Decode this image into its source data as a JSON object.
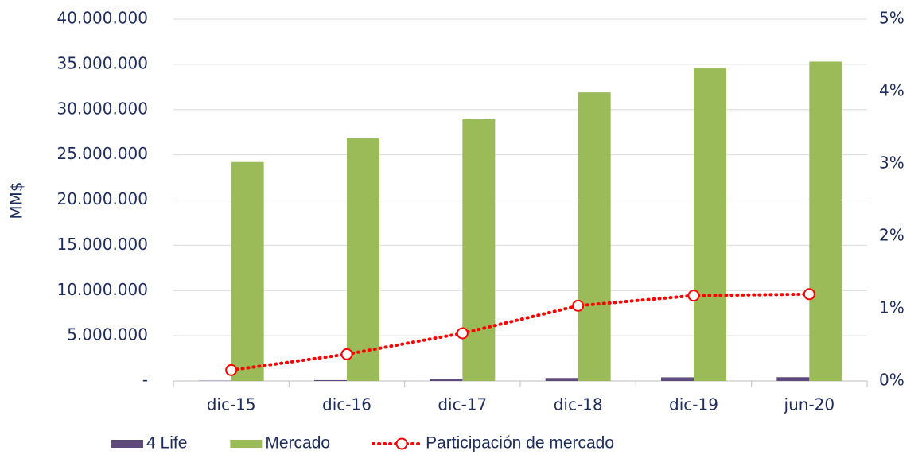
{
  "chart_data": {
    "type": "bar",
    "y_label": "MM$",
    "categories": [
      "dic-15",
      "dic-16",
      "dic-17",
      "dic-18",
      "dic-19",
      "jun-20"
    ],
    "series": [
      {
        "name": "4 Life",
        "color": "#5f4b7b",
        "values": [
          31000,
          94000,
          189000,
          329000,
          401000,
          417000
        ]
      },
      {
        "name": "Mercado",
        "color": "#9bbb59",
        "values": [
          24200000,
          26900000,
          29000000,
          31900000,
          34600000,
          35300000
        ]
      },
      {
        "name": "Participación de mercado",
        "type": "line",
        "axis": "y2",
        "color": "#ff0000",
        "values": [
          0.15,
          0.37,
          0.66,
          1.04,
          1.18,
          1.2
        ]
      }
    ],
    "ylim": [
      0,
      40000000
    ],
    "yticks": [
      {
        "value": 0,
        "label": "-"
      },
      {
        "value": 5000000,
        "label": "5.000.000"
      },
      {
        "value": 10000000,
        "label": "10.000.000"
      },
      {
        "value": 15000000,
        "label": "15.000.000"
      },
      {
        "value": 20000000,
        "label": "20.000.000"
      },
      {
        "value": 25000000,
        "label": "25.000.000"
      },
      {
        "value": 30000000,
        "label": "30.000.000"
      },
      {
        "value": 35000000,
        "label": "35.000.000"
      },
      {
        "value": 40000000,
        "label": "40.000.000"
      }
    ],
    "y2lim": [
      0,
      5
    ],
    "y2ticks": [
      {
        "value": 0,
        "label": "0%"
      },
      {
        "value": 1,
        "label": "1%"
      },
      {
        "value": 2,
        "label": "2%"
      },
      {
        "value": 3,
        "label": "3%"
      },
      {
        "value": 4,
        "label": "4%"
      },
      {
        "value": 5,
        "label": "5%"
      }
    ],
    "grid": true,
    "legend": "bottom"
  }
}
